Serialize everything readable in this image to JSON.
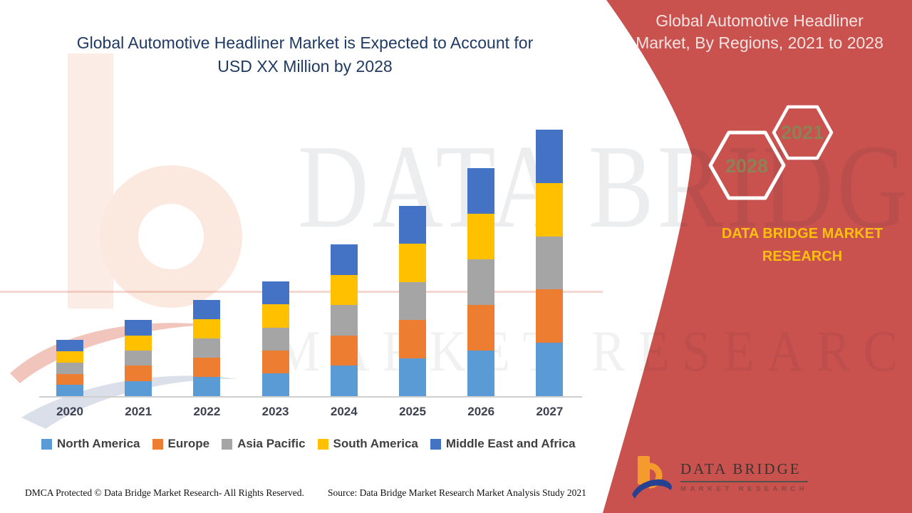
{
  "left_title": {
    "line1": "Global Automotive Headliner Market is Expected to Account for",
    "line2": "USD XX Million by 2028"
  },
  "right_panel": {
    "title_line1": "Global Automotive Headliner",
    "title_line2": "Market, By Regions, 2021 to 2028",
    "badge_back": "2028",
    "badge_front": "2021",
    "brand_line1": "DATA BRIDGE MARKET",
    "brand_line2": "RESEARCH",
    "bg_color": "#C9514E",
    "badge_text_color": "#8C8157",
    "brand_text_color": "#FDC011"
  },
  "watermark": {
    "line1": "DATA BRIDGE",
    "line2": "MARKET RESEARCH"
  },
  "logo": {
    "name": "DATA BRIDGE",
    "subtitle": "MARKET RESEARCH",
    "icon": "data-bridge-b-swoosh-icon",
    "icon_orange": "#F59B2D",
    "icon_blue": "#26418F"
  },
  "footer": {
    "left": "DMCA Protected © Data Bridge Market Research- All Rights Reserved.",
    "right": "Source: Data Bridge Market Research Market Analysis Study 2021"
  },
  "chart_data": {
    "type": "bar",
    "stacked": true,
    "title": "Global Automotive Headliner Market is Expected to Account for USD XX Million by 2028",
    "categories": [
      "2020",
      "2021",
      "2022",
      "2023",
      "2024",
      "2025",
      "2026",
      "2027"
    ],
    "series": [
      {
        "name": "North America",
        "color": "#5B9BD5",
        "values": [
          4.2,
          5.7,
          7.2,
          8.6,
          11.4,
          14.3,
          17.1,
          20.0
        ]
      },
      {
        "name": "Europe",
        "color": "#ED7D31",
        "values": [
          4.2,
          5.7,
          7.2,
          8.6,
          11.4,
          14.3,
          17.1,
          20.0
        ]
      },
      {
        "name": "Asia Pacific",
        "color": "#A5A5A5",
        "values": [
          4.2,
          5.7,
          7.2,
          8.6,
          11.4,
          14.3,
          17.1,
          20.0
        ]
      },
      {
        "name": "South America",
        "color": "#FFC000",
        "values": [
          4.2,
          5.7,
          7.2,
          8.6,
          11.4,
          14.3,
          17.1,
          20.0
        ]
      },
      {
        "name": "Middle East and Africa",
        "color": "#4472C4",
        "values": [
          4.2,
          5.7,
          7.2,
          8.6,
          11.4,
          14.3,
          17.1,
          20.0
        ]
      }
    ],
    "stack_order_bottom_to_top": [
      "North America",
      "Europe",
      "Asia Pacific",
      "South America",
      "Middle East and Africa"
    ],
    "totals_by_year": [
      21.0,
      28.5,
      36.0,
      43.0,
      57.0,
      71.5,
      85.5,
      100.0
    ],
    "units": "relative index (2027 total = 100); actual USD values shown as XX placeholder",
    "xlabel": "",
    "ylabel": "",
    "ylim": [
      0,
      104
    ],
    "value_axis_visible": false,
    "grid": false,
    "legend_position": "bottom"
  }
}
